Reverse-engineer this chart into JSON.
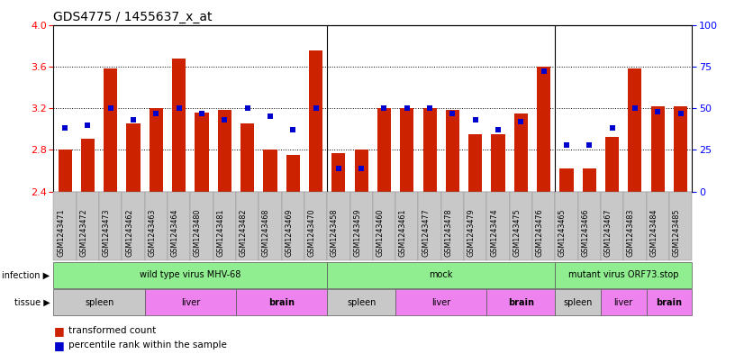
{
  "title": "GDS4775 / 1455637_x_at",
  "samples": [
    "GSM1243471",
    "GSM1243472",
    "GSM1243473",
    "GSM1243462",
    "GSM1243463",
    "GSM1243464",
    "GSM1243480",
    "GSM1243481",
    "GSM1243482",
    "GSM1243468",
    "GSM1243469",
    "GSM1243470",
    "GSM1243458",
    "GSM1243459",
    "GSM1243460",
    "GSM1243461",
    "GSM1243477",
    "GSM1243478",
    "GSM1243479",
    "GSM1243474",
    "GSM1243475",
    "GSM1243476",
    "GSM1243465",
    "GSM1243466",
    "GSM1243467",
    "GSM1243483",
    "GSM1243484",
    "GSM1243485"
  ],
  "bar_values": [
    2.8,
    2.91,
    3.58,
    3.05,
    3.2,
    3.68,
    3.16,
    3.18,
    3.05,
    2.8,
    2.75,
    3.75,
    2.77,
    2.8,
    3.2,
    3.2,
    3.2,
    3.18,
    2.95,
    2.95,
    3.15,
    3.6,
    2.62,
    2.62,
    2.92,
    3.58,
    3.22,
    3.22
  ],
  "percentile_values": [
    38,
    40,
    50,
    43,
    47,
    50,
    47,
    43,
    50,
    45,
    37,
    50,
    14,
    14,
    50,
    50,
    50,
    47,
    43,
    37,
    42,
    72,
    28,
    28,
    38,
    50,
    48,
    47
  ],
  "bar_color": "#CC2200",
  "dot_color": "#0000CC",
  "ylim_left": [
    2.4,
    4.0
  ],
  "ylim_right": [
    0,
    100
  ],
  "yticks_left": [
    2.4,
    2.8,
    3.2,
    3.6,
    4.0
  ],
  "yticks_right": [
    0,
    25,
    50,
    75,
    100
  ],
  "grid_lines": [
    2.8,
    3.2,
    3.6
  ],
  "infection_spans": [
    {
      "label": "wild type virus MHV-68",
      "start": 0,
      "end": 12,
      "color": "#90EE90"
    },
    {
      "label": "mock",
      "start": 12,
      "end": 22,
      "color": "#90EE90"
    },
    {
      "label": "mutant virus ORF73.stop",
      "start": 22,
      "end": 28,
      "color": "#90EE90"
    }
  ],
  "tissue_spans": [
    {
      "label": "spleen",
      "start": 0,
      "end": 4,
      "color": "#C8C8C8"
    },
    {
      "label": "liver",
      "start": 4,
      "end": 8,
      "color": "#EE82EE"
    },
    {
      "label": "brain",
      "start": 8,
      "end": 12,
      "color": "#EE82EE"
    },
    {
      "label": "spleen",
      "start": 12,
      "end": 15,
      "color": "#C8C8C8"
    },
    {
      "label": "liver",
      "start": 15,
      "end": 19,
      "color": "#EE82EE"
    },
    {
      "label": "brain",
      "start": 19,
      "end": 22,
      "color": "#EE82EE"
    },
    {
      "label": "spleen",
      "start": 22,
      "end": 24,
      "color": "#C8C8C8"
    },
    {
      "label": "liver",
      "start": 24,
      "end": 26,
      "color": "#EE82EE"
    },
    {
      "label": "brain",
      "start": 26,
      "end": 28,
      "color": "#EE82EE"
    }
  ],
  "xtick_bg_colors": [
    "#C8C8C8",
    "#C8C8C8",
    "#C8C8C8",
    "#C8C8C8",
    "#C8C8C8",
    "#C8C8C8",
    "#C8C8C8",
    "#C8C8C8",
    "#C8C8C8",
    "#C8C8C8",
    "#C8C8C8",
    "#C8C8C8",
    "#C8C8C8",
    "#C8C8C8",
    "#C8C8C8",
    "#C8C8C8",
    "#C8C8C8",
    "#C8C8C8",
    "#C8C8C8",
    "#C8C8C8",
    "#C8C8C8",
    "#C8C8C8",
    "#C8C8C8",
    "#C8C8C8",
    "#C8C8C8",
    "#C8C8C8",
    "#C8C8C8",
    "#C8C8C8"
  ],
  "group_separators": [
    11.5,
    21.5
  ],
  "n_bars": 28,
  "bar_width": 0.6,
  "bg_color": "#FFFFFF",
  "tick_area_color": "#C8C8C8"
}
